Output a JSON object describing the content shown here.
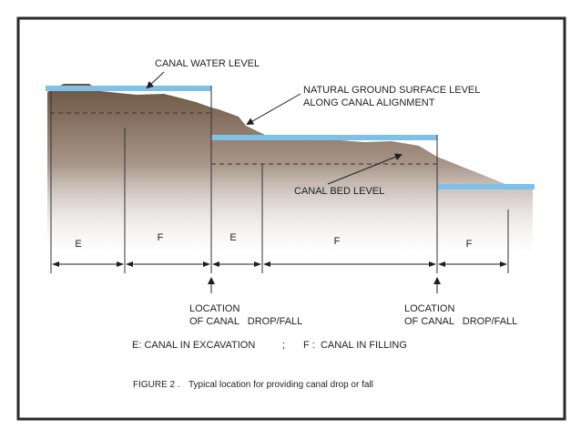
{
  "labels": {
    "canal_water_level": "CANAL WATER LEVEL",
    "natural_ground_line1": "NATURAL GROUND SURFACE LEVEL",
    "natural_ground_line2": "ALONG CANAL ALIGNMENT",
    "canal_bed_level": "CANAL BED LEVEL"
  },
  "segments": [
    "E",
    "F",
    "E",
    "F",
    "F"
  ],
  "drop_locations": [
    {
      "line1": "LOCATION",
      "line2": "OF CANAL   DROP/FALL"
    },
    {
      "line1": "LOCATION",
      "line2": "OF CANAL   DROP/FALL"
    }
  ],
  "legend": {
    "excavation": "E: CANAL IN EXCAVATION",
    "separator": ";",
    "filling": "F :  CANAL IN FILLING"
  },
  "caption": {
    "prefix": "FIGURE 2 .",
    "text": "Typical location for providing canal drop or fall"
  },
  "colors": {
    "water": "#7ec1e6",
    "ground_dark": "#6b5440",
    "frame": "#2a2a2a",
    "background": "#ffffff"
  }
}
